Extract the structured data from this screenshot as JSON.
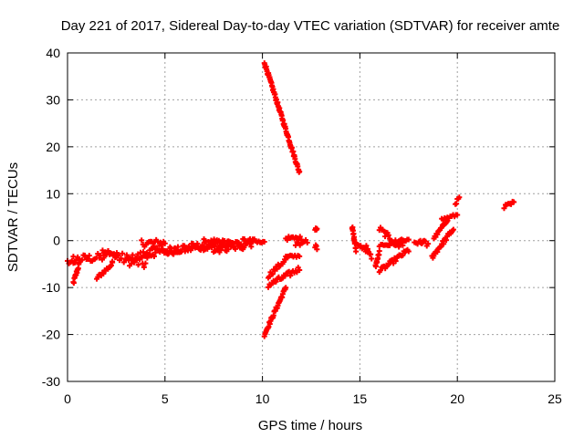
{
  "chart_data": {
    "type": "scatter",
    "title": "Day 221 of 2017, Sidereal Day-to-day VTEC variation (SDTVAR) for receiver amte",
    "xlabel": "GPS time / hours",
    "ylabel": "SDTVAR / TECUs",
    "xlim": [
      0,
      25
    ],
    "ylim": [
      -30,
      40
    ],
    "xticks": [
      0,
      5,
      10,
      15,
      20,
      25
    ],
    "yticks": [
      -30,
      -20,
      -10,
      0,
      10,
      20,
      30,
      40
    ],
    "grid": true,
    "marker": "plus",
    "color": "#ff0000",
    "series": [
      {
        "segments": [
          {
            "x0": 0.0,
            "y0": -4.5,
            "x1": 0.3,
            "y1": -5.0,
            "spread": 0.6
          },
          {
            "x0": 0.3,
            "y0": -9.0,
            "x1": 0.6,
            "y1": -5.0,
            "spread": 0.5
          },
          {
            "x0": 0.3,
            "y0": -4.0,
            "x1": 2.0,
            "y1": -3.5,
            "spread": 0.9
          },
          {
            "x0": 1.5,
            "y0": -8.0,
            "x1": 2.3,
            "y1": -5.0,
            "spread": 0.4
          },
          {
            "x0": 1.8,
            "y0": -2.0,
            "x1": 2.6,
            "y1": -3.0,
            "spread": 0.5
          },
          {
            "x0": 2.0,
            "y0": -3.0,
            "x1": 4.0,
            "y1": -5.0,
            "spread": 1.2
          },
          {
            "x0": 3.0,
            "y0": -4.5,
            "x1": 4.5,
            "y1": -2.0,
            "spread": 1.0
          },
          {
            "x0": 3.8,
            "y0": -0.5,
            "x1": 5.0,
            "y1": -0.5,
            "spread": 0.8
          },
          {
            "x0": 4.0,
            "y0": -3.0,
            "x1": 6.0,
            "y1": -1.5,
            "spread": 0.9
          },
          {
            "x0": 5.0,
            "y0": -2.5,
            "x1": 7.5,
            "y1": -1.0,
            "spread": 0.8
          },
          {
            "x0": 6.0,
            "y0": -1.5,
            "x1": 8.5,
            "y1": -0.5,
            "spread": 0.8
          },
          {
            "x0": 7.0,
            "y0": -0.5,
            "x1": 9.0,
            "y1": -1.0,
            "spread": 1.0
          },
          {
            "x0": 7.5,
            "y0": -2.0,
            "x1": 9.5,
            "y1": -0.5,
            "spread": 0.8
          },
          {
            "x0": 9.0,
            "y0": 0.0,
            "x1": 10.1,
            "y1": -0.5,
            "spread": 0.6
          },
          {
            "x0": 10.1,
            "y0": 38.0,
            "x1": 11.9,
            "y1": 14.5,
            "spread": 0.4
          },
          {
            "x0": 10.1,
            "y0": -20.0,
            "x1": 11.2,
            "y1": -10.0,
            "spread": 0.4
          },
          {
            "x0": 10.3,
            "y0": -9.5,
            "x1": 11.9,
            "y1": -6.0,
            "spread": 0.6
          },
          {
            "x0": 10.3,
            "y0": -7.5,
            "x1": 11.2,
            "y1": -4.0,
            "spread": 0.5
          },
          {
            "x0": 11.2,
            "y0": -3.5,
            "x1": 11.9,
            "y1": -3.2,
            "spread": 0.3
          },
          {
            "x0": 11.2,
            "y0": 0.5,
            "x1": 12.0,
            "y1": 0.5,
            "spread": 0.4
          },
          {
            "x0": 11.7,
            "y0": 0.0,
            "x1": 12.3,
            "y1": -0.5,
            "spread": 1.0
          },
          {
            "x0": 12.7,
            "y0": 2.5,
            "x1": 12.8,
            "y1": 2.5,
            "spread": 0.2
          },
          {
            "x0": 12.7,
            "y0": -0.5,
            "x1": 12.8,
            "y1": -1.0,
            "spread": 1.0
          },
          {
            "x0": 14.6,
            "y0": 3.0,
            "x1": 14.8,
            "y1": -2.0,
            "spread": 0.5
          },
          {
            "x0": 14.9,
            "y0": -1.0,
            "x1": 15.4,
            "y1": -1.5,
            "spread": 0.5
          },
          {
            "x0": 15.3,
            "y0": -2.0,
            "x1": 15.6,
            "y1": -3.5,
            "spread": 0.5
          },
          {
            "x0": 15.8,
            "y0": -5.5,
            "x1": 16.0,
            "y1": -2.5,
            "spread": 0.4
          },
          {
            "x0": 16.0,
            "y0": 2.5,
            "x1": 17.0,
            "y1": -1.0,
            "spread": 0.6
          },
          {
            "x0": 16.0,
            "y0": -1.0,
            "x1": 17.2,
            "y1": -0.5,
            "spread": 0.5
          },
          {
            "x0": 16.0,
            "y0": -6.5,
            "x1": 17.5,
            "y1": -2.0,
            "spread": 0.5
          },
          {
            "x0": 17.0,
            "y0": 0.0,
            "x1": 17.5,
            "y1": 0.0,
            "spread": 0.3
          },
          {
            "x0": 17.8,
            "y0": -0.5,
            "x1": 18.2,
            "y1": -0.5,
            "spread": 0.3
          },
          {
            "x0": 18.1,
            "y0": 0.0,
            "x1": 18.5,
            "y1": -1.0,
            "spread": 0.6
          },
          {
            "x0": 18.7,
            "y0": -3.5,
            "x1": 19.8,
            "y1": 2.5,
            "spread": 0.5
          },
          {
            "x0": 18.8,
            "y0": 0.5,
            "x1": 19.5,
            "y1": 4.5,
            "spread": 0.3
          },
          {
            "x0": 19.2,
            "y0": 4.5,
            "x1": 20.0,
            "y1": 5.5,
            "spread": 0.3
          },
          {
            "x0": 19.9,
            "y0": 8.0,
            "x1": 20.1,
            "y1": 9.0,
            "spread": 0.4
          },
          {
            "x0": 22.4,
            "y0": 7.0,
            "x1": 22.9,
            "y1": 8.0,
            "spread": 0.6
          }
        ]
      }
    ]
  }
}
